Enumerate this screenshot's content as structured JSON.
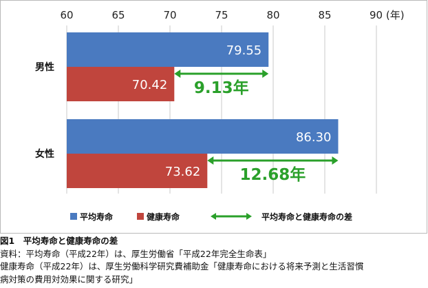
{
  "chart_data": {
    "type": "bar",
    "orientation": "horizontal",
    "categories": [
      "男性",
      "女性"
    ],
    "series": [
      {
        "name": "平均寿命",
        "values": [
          79.55,
          86.3
        ],
        "color": "#4a7ac0",
        "labels": [
          "79.55",
          "86.30"
        ]
      },
      {
        "name": "健康寿命",
        "values": [
          70.42,
          73.62
        ],
        "color": "#c0453d",
        "labels": [
          "70.42",
          "73.62"
        ]
      }
    ],
    "differences": {
      "name": "平均寿命と健康寿命の差",
      "values": [
        9.13,
        12.68
      ],
      "labels": [
        "9.13年",
        "12.68年"
      ],
      "color": "#2aa02a"
    },
    "xlim": [
      60,
      90
    ],
    "x_ticks": [
      "60",
      "65",
      "70",
      "75",
      "80",
      "85",
      "90 (年)"
    ],
    "grid": true,
    "legend_position": "bottom"
  },
  "caption": {
    "title": "図1　平均寿命と健康寿命の差",
    "lines": [
      "資料：平均寿命（平成22年）は、厚生労働省「平成22年完全生命表」",
      "健康寿命（平成22年）は、厚生労働科学研究費補助金「健康寿命における将来予測と生活習慣",
      "病対策の費用対効果に関する研究」"
    ]
  }
}
